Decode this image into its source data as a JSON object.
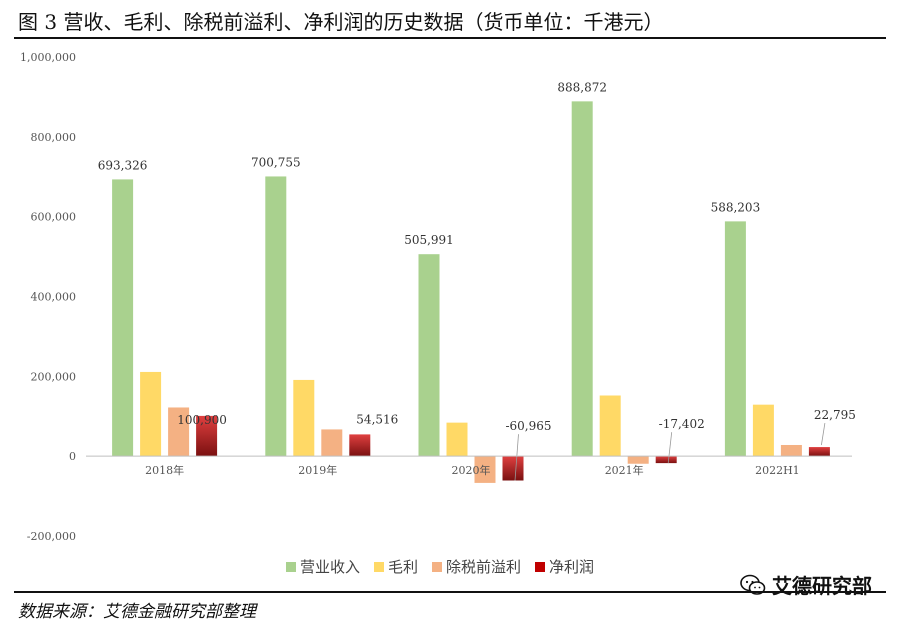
{
  "title": "图 3 营收、毛利、除税前溢利、净利润的历史数据（货币单位：千港元）",
  "source": "数据来源：艾德金融研究部整理",
  "watermark": "艾德研究部",
  "colors": {
    "revenue": "#a9d18e",
    "gross": "#ffd966",
    "pretax": "#f4b183",
    "net": "#c00000"
  },
  "chart_data": {
    "type": "bar",
    "categories": [
      "2018年",
      "2019年",
      "2020年",
      "2021年",
      "2022H1"
    ],
    "series": [
      {
        "name": "营业收入",
        "values": [
          693326,
          700755,
          505991,
          888872,
          588203
        ]
      },
      {
        "name": "毛利",
        "values": [
          211000,
          191000,
          84000,
          152000,
          129000
        ]
      },
      {
        "name": "除税前溢利",
        "values": [
          122000,
          67000,
          -67000,
          -19000,
          28000
        ]
      },
      {
        "name": "净利润",
        "values": [
          100900,
          54516,
          -60965,
          -17402,
          22795
        ]
      }
    ],
    "data_labels": {
      "营业收入": [
        "693,326",
        "700,755",
        "505,991",
        "888,872",
        "588,203"
      ],
      "净利润": [
        "100,900",
        "54,516",
        "-60,965",
        "-17,402",
        "22,795"
      ]
    },
    "ylim": [
      -200000,
      1000000
    ],
    "yticks": [
      "-200,000",
      "0",
      "200,000",
      "400,000",
      "600,000",
      "800,000",
      "1,000,000"
    ],
    "ytick_values": [
      -200000,
      0,
      200000,
      400000,
      600000,
      800000,
      1000000
    ],
    "legend_position": "bottom",
    "grid": false
  }
}
